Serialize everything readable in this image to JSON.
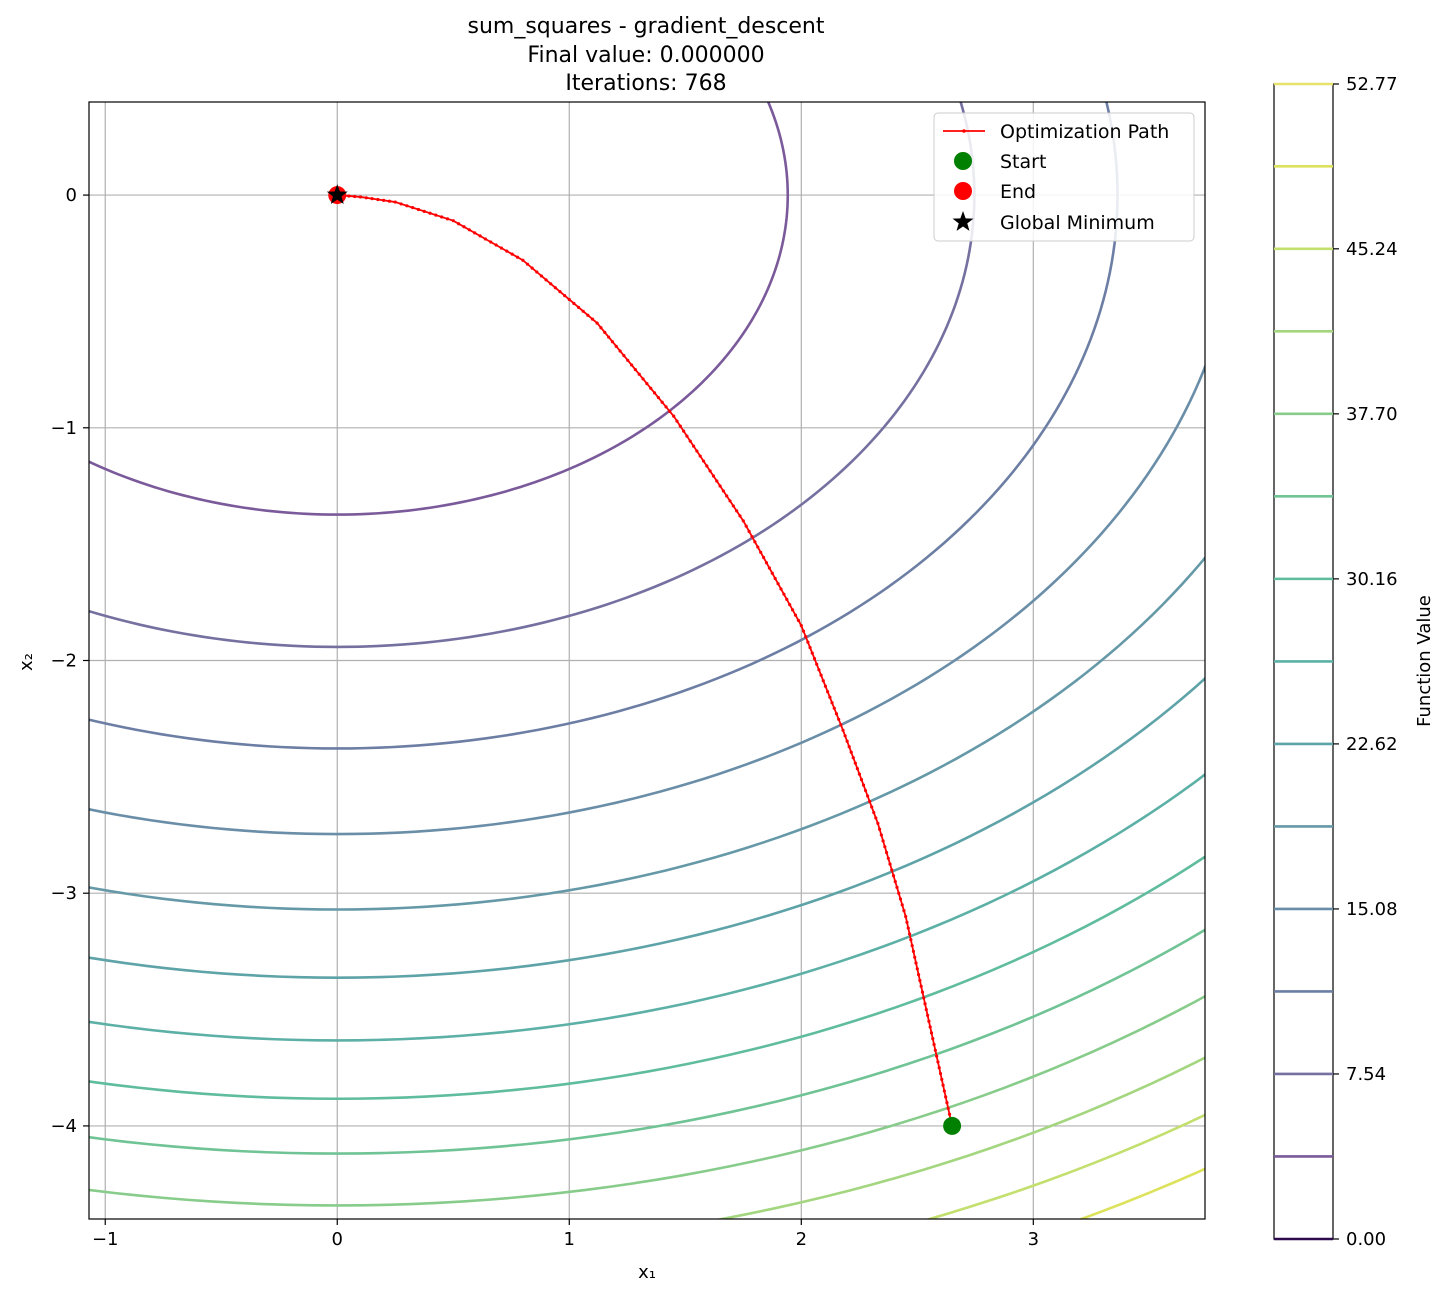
{
  "chart_data": {
    "type": "line",
    "title_lines": [
      "sum_squares - gradient_descent",
      "Final value: 0.000000",
      "Iterations: 768"
    ],
    "xlabel": "x₁",
    "ylabel": "x₂",
    "xlim": [
      -1.07,
      3.74
    ],
    "ylim": [
      -4.4,
      0.4
    ],
    "x_ticks": [
      -1,
      0,
      1,
      2,
      3
    ],
    "x_tick_labels": [
      "−1",
      "0",
      "1",
      "2",
      "3"
    ],
    "y_ticks": [
      0,
      -1,
      -2,
      -3,
      -4
    ],
    "y_tick_labels": [
      "0",
      "−1",
      "−2",
      "−3",
      "−4"
    ],
    "grid": true,
    "contour": {
      "function": "x1^2 + 2*x2^2",
      "levels": [
        3.77,
        7.54,
        11.31,
        15.08,
        18.85,
        22.62,
        26.39,
        30.16,
        33.93,
        37.7,
        41.47,
        45.24,
        49.01
      ],
      "colors": [
        "#7a5a9a",
        "#7470a0",
        "#6c7ea4",
        "#6a8ea8",
        "#6699a8",
        "#5ea3a8",
        "#5cb0a6",
        "#5fbc9e",
        "#6fc394",
        "#87cc8a",
        "#a3d67e",
        "#c3df6e",
        "#dde25c"
      ]
    },
    "colorbar": {
      "label": "Function Value",
      "min": 0.0,
      "max": 52.77,
      "tick_values": [
        0.0,
        7.54,
        15.08,
        22.62,
        30.16,
        37.7,
        45.24,
        52.77
      ],
      "tick_labels": [
        "0.00",
        "7.54",
        "15.08",
        "22.62",
        "30.16",
        "37.70",
        "45.24",
        "52.77"
      ],
      "line_levels": [
        0.0,
        3.77,
        7.54,
        11.31,
        15.08,
        18.85,
        22.62,
        26.39,
        30.16,
        33.93,
        37.7,
        41.47,
        45.24,
        49.01,
        52.77
      ],
      "line_colors": [
        "#2d0b4e",
        "#7a5a9a",
        "#7470a0",
        "#6c7ea4",
        "#6a8ea8",
        "#6699a8",
        "#5ea3a8",
        "#5cb0a6",
        "#5fbc9e",
        "#6fc394",
        "#87cc8a",
        "#a3d67e",
        "#c3df6e",
        "#dde25c",
        "#e7e36a"
      ]
    },
    "path": {
      "color": "#ff0000",
      "start": [
        2.65,
        -4.0
      ],
      "end": [
        0.0,
        0.0
      ],
      "points": [
        [
          2.65,
          -4.0
        ],
        [
          2.55,
          -3.55
        ],
        [
          2.45,
          -3.1
        ],
        [
          2.33,
          -2.7
        ],
        [
          2.18,
          -2.3
        ],
        [
          2.0,
          -1.85
        ],
        [
          1.75,
          -1.4
        ],
        [
          1.45,
          -0.95
        ],
        [
          1.12,
          -0.55
        ],
        [
          0.8,
          -0.28
        ],
        [
          0.5,
          -0.11
        ],
        [
          0.25,
          -0.03
        ],
        [
          0.1,
          -0.008
        ],
        [
          0.0,
          0.0
        ]
      ]
    },
    "start_point": [
      2.65,
      -4.0
    ],
    "end_point": [
      0.0,
      0.0
    ],
    "global_minimum": [
      0.0,
      0.0
    ],
    "legend": {
      "placement": "top-right",
      "entries": [
        "Optimization Path",
        "Start",
        "End",
        "Global Minimum"
      ]
    },
    "series_colors": {
      "start": "#008000",
      "end": "#ff0000",
      "global_minimum": "#000000"
    }
  }
}
